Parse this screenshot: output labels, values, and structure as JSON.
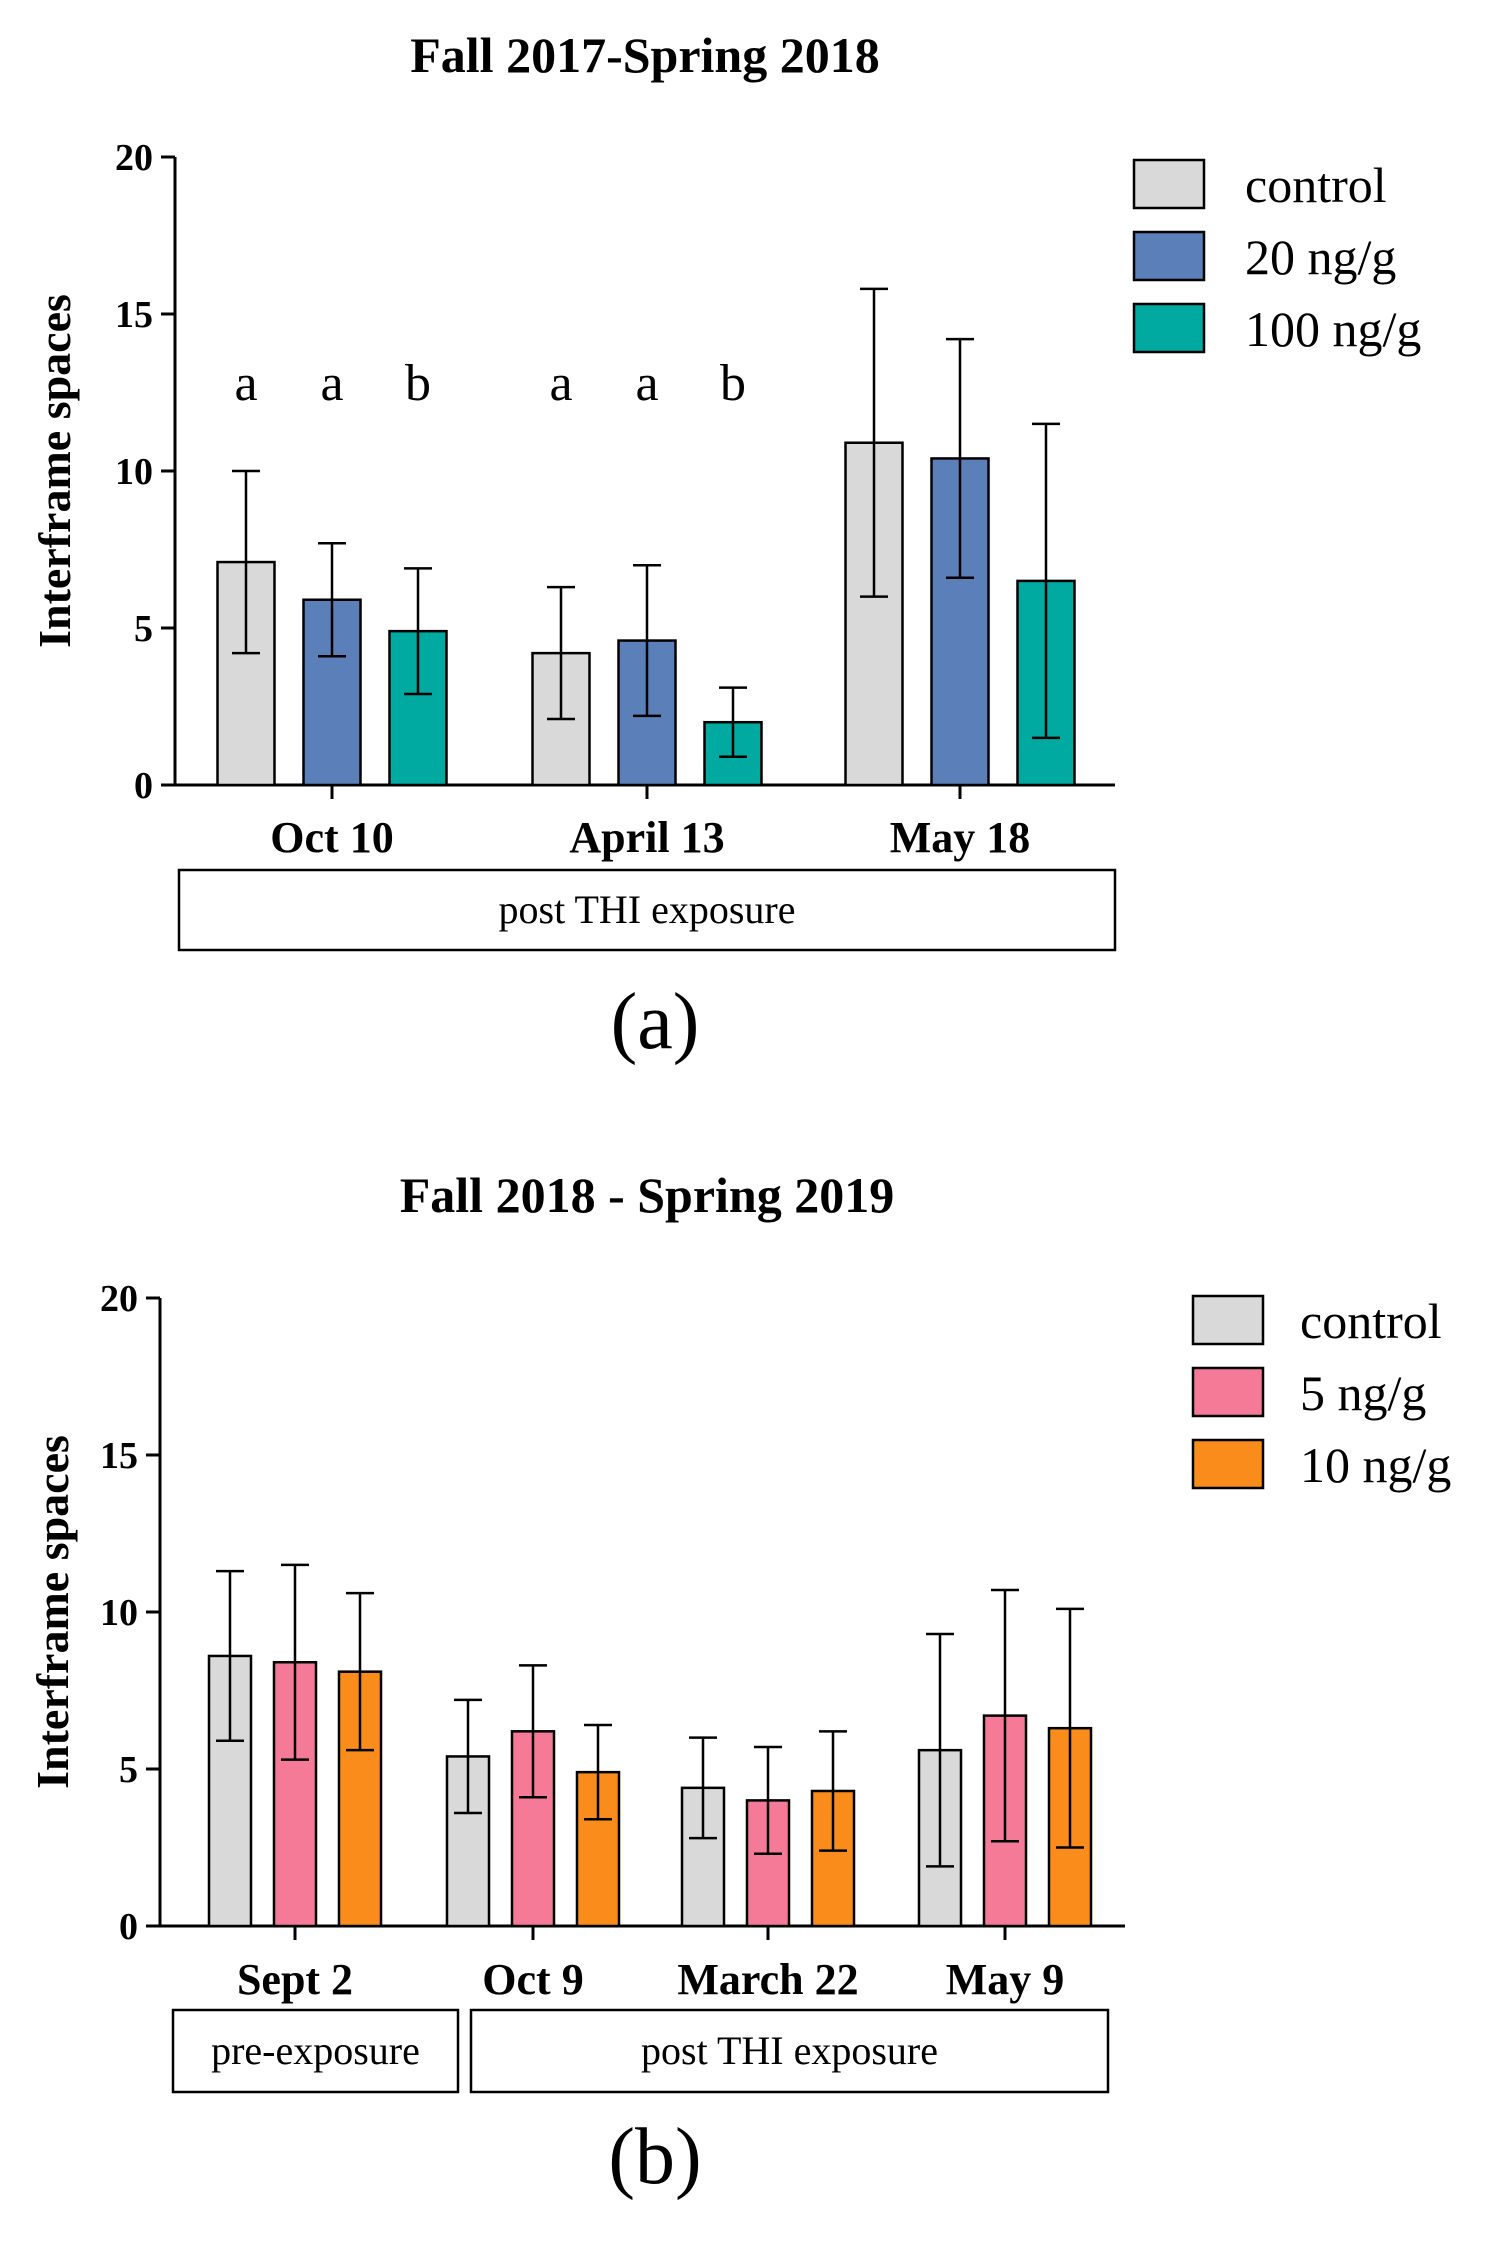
{
  "chart_data": [
    {
      "type": "bar",
      "title": "Fall 2017-Spring 2018",
      "panel_label": "(a)",
      "ylabel": "Interframe spaces",
      "xlabel": "",
      "ylim": [
        0,
        20
      ],
      "yticks": [
        "0",
        "5",
        "10",
        "15",
        "20"
      ],
      "categories": [
        "Oct 10",
        "April 13",
        "May 18"
      ],
      "series": [
        {
          "name": "control",
          "color": "#d9d9d9",
          "values": [
            7.1,
            4.2,
            10.9
          ],
          "errors": [
            2.9,
            2.1,
            4.9
          ],
          "sig_letters": [
            "a",
            "a",
            ""
          ]
        },
        {
          "name": "20 ng/g",
          "color": "#5b7fb8",
          "values": [
            5.9,
            4.6,
            10.4
          ],
          "errors": [
            1.8,
            2.4,
            3.8
          ],
          "sig_letters": [
            "a",
            "a",
            ""
          ]
        },
        {
          "name": "100 ng/g",
          "color": "#00aaa0",
          "values": [
            4.9,
            2.0,
            6.5
          ],
          "errors": [
            2.0,
            1.1,
            5.0
          ],
          "sig_letters": [
            "b",
            "b",
            ""
          ]
        }
      ],
      "legend_position": "top-right",
      "groups": [
        {
          "label": "post THI exposure",
          "span": [
            0,
            2
          ]
        }
      ]
    },
    {
      "type": "bar",
      "title": "Fall 2018 - Spring 2019",
      "panel_label": "(b)",
      "ylabel": "Interframe spaces",
      "xlabel": "",
      "ylim": [
        0,
        20
      ],
      "yticks": [
        "0",
        "5",
        "10",
        "15",
        "20"
      ],
      "categories": [
        "Sept 2",
        "Oct 9",
        "March 22",
        "May 9"
      ],
      "series": [
        {
          "name": "control",
          "color": "#d9d9d9",
          "values": [
            8.6,
            5.4,
            4.4,
            5.6
          ],
          "errors": [
            2.7,
            1.8,
            1.6,
            3.7
          ]
        },
        {
          "name": "5 ng/g",
          "color": "#f57a98",
          "values": [
            8.4,
            6.2,
            4.0,
            6.7
          ],
          "errors": [
            3.1,
            2.1,
            1.7,
            4.0
          ]
        },
        {
          "name": "10 ng/g",
          "color": "#f98c1a",
          "values": [
            8.1,
            4.9,
            4.3,
            6.3
          ],
          "errors": [
            2.5,
            1.5,
            1.9,
            3.8
          ]
        }
      ],
      "legend_position": "top-right",
      "groups": [
        {
          "label": "pre-exposure",
          "span": [
            0,
            0
          ]
        },
        {
          "label": "post THI exposure",
          "span": [
            1,
            3
          ]
        }
      ]
    }
  ]
}
